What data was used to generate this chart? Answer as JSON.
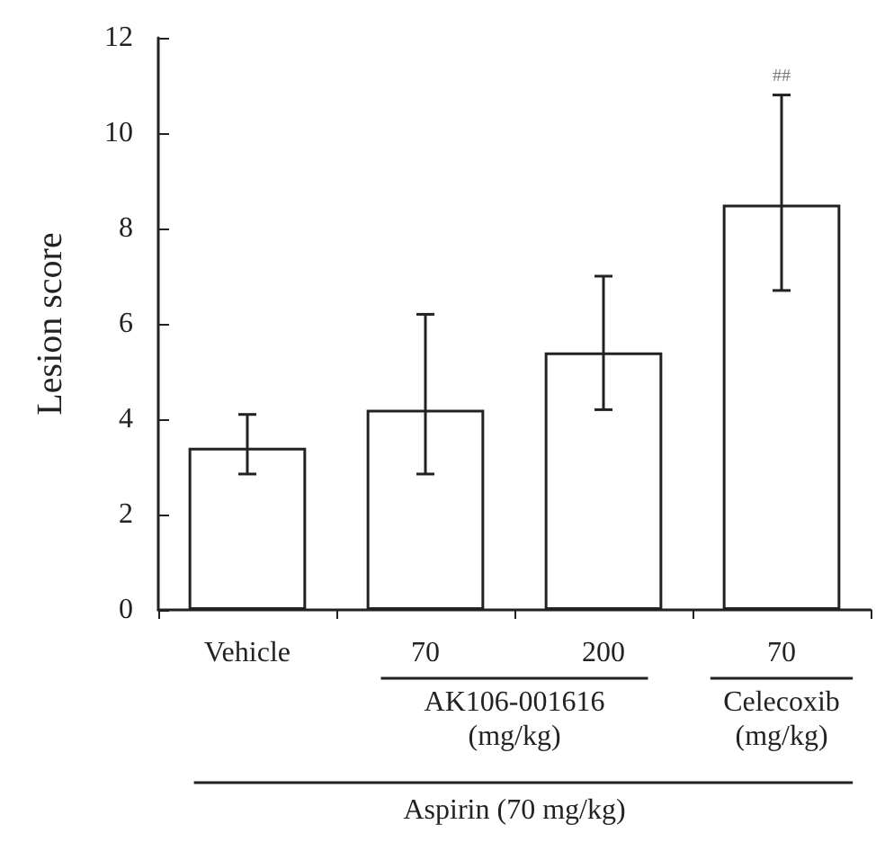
{
  "chart_data": {
    "type": "bar",
    "ylabel": "Lesion score",
    "categories": [
      "Vehicle",
      "70",
      "200",
      "70"
    ],
    "values": [
      3.4,
      4.2,
      5.4,
      8.5
    ],
    "errors": [
      [
        2.85,
        4.1
      ],
      [
        2.85,
        6.2
      ],
      [
        4.2,
        7.0
      ],
      [
        6.7,
        10.8
      ]
    ],
    "color": "#ffffff",
    "ylim": [
      0,
      12
    ],
    "yticks": [
      0,
      2,
      4,
      6,
      8,
      10,
      12
    ],
    "annotations": [
      "##",
      "AK106-001616\n(mg/kg)",
      "Celecoxib\n(mg/kg)",
      "Aspirin (70 mg/kg)"
    ]
  }
}
